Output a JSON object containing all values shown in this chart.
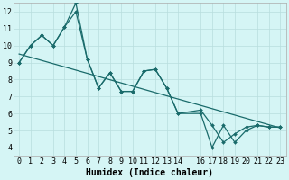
{
  "xlabel": "Humidex (Indice chaleur)",
  "background_color": "#d5f5f5",
  "grid_color": "#b8dede",
  "line_color": "#1a6b6b",
  "xlim": [
    -0.5,
    23.5
  ],
  "ylim": [
    3.5,
    12.5
  ],
  "xticks": [
    0,
    1,
    2,
    3,
    4,
    5,
    6,
    7,
    8,
    9,
    10,
    11,
    12,
    13,
    14,
    16,
    17,
    18,
    19,
    20,
    21,
    22,
    23
  ],
  "yticks": [
    4,
    5,
    6,
    7,
    8,
    9,
    10,
    11,
    12
  ],
  "line1_x": [
    0,
    1,
    2,
    3,
    4,
    5,
    6,
    7,
    8,
    9,
    10,
    11,
    12,
    13,
    14,
    16,
    17,
    18,
    19,
    20,
    21,
    22,
    23
  ],
  "line1_y": [
    9,
    10,
    10.6,
    10.0,
    11.1,
    12.0,
    9.2,
    7.5,
    8.4,
    7.3,
    7.3,
    8.5,
    8.6,
    7.5,
    6.0,
    6.2,
    5.3,
    4.3,
    4.8,
    5.2,
    5.3,
    5.2,
    5.2
  ],
  "line2_x": [
    0,
    1,
    2,
    3,
    4,
    5,
    6,
    7,
    8,
    9,
    10,
    11,
    12,
    13,
    14,
    16,
    17,
    18,
    19,
    20,
    21,
    22,
    23
  ],
  "line2_y": [
    9,
    10,
    10.6,
    10.0,
    11.1,
    12.5,
    9.2,
    7.5,
    8.4,
    7.3,
    7.3,
    8.5,
    8.6,
    7.5,
    6.0,
    6.0,
    4.0,
    5.3,
    4.3,
    5.0,
    5.3,
    5.2,
    5.2
  ],
  "line3_x": [
    0,
    23
  ],
  "line3_y": [
    9.5,
    5.15
  ],
  "fontsize_ticks": 6,
  "fontsize_label": 7
}
